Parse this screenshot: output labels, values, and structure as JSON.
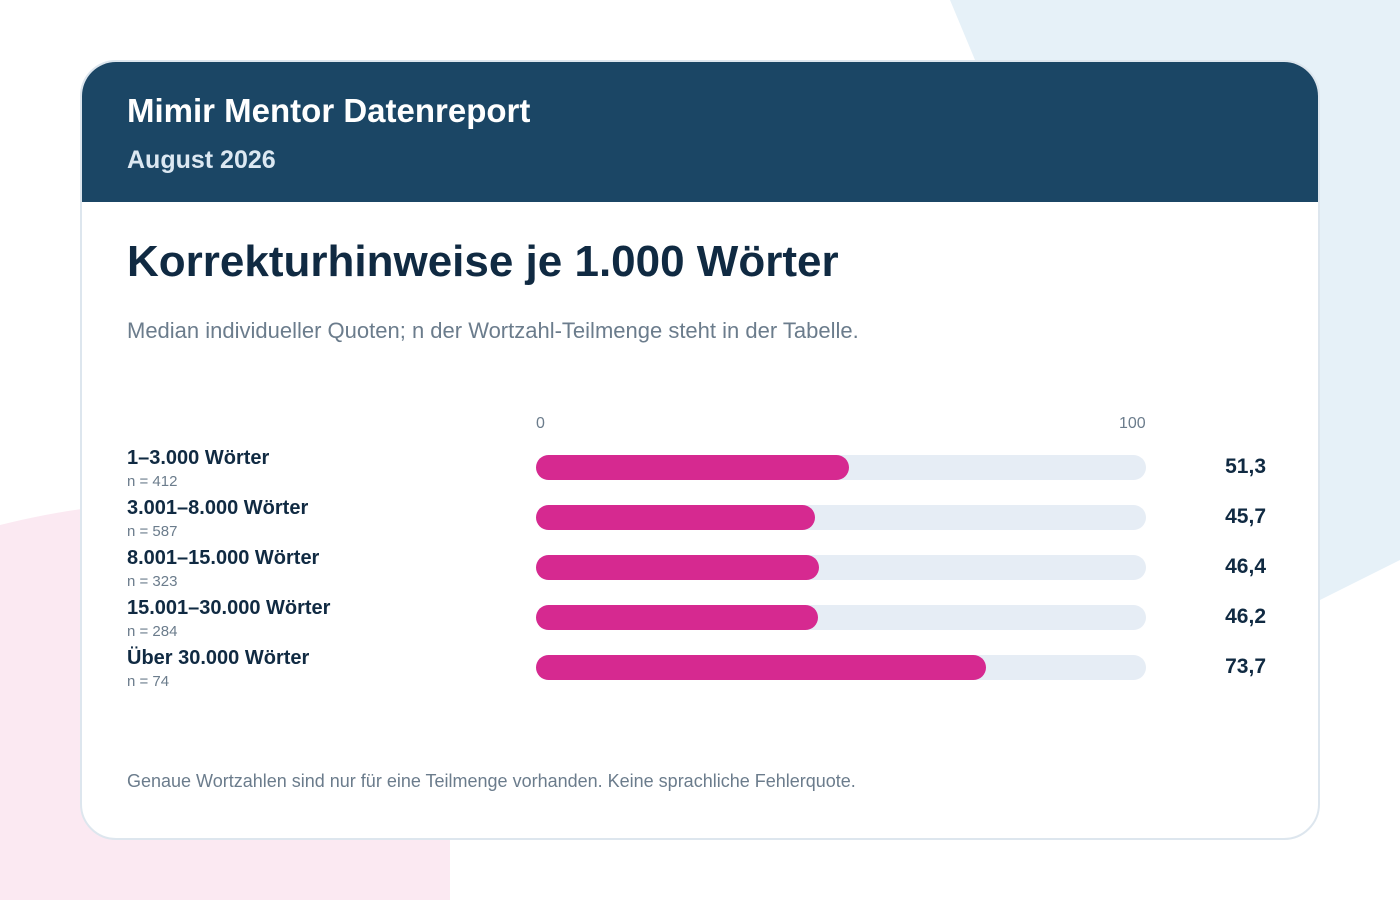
{
  "report": {
    "brand": "Mimir Mentor Datenreport",
    "period": "August 2026"
  },
  "chart_data": {
    "type": "bar",
    "orientation": "horizontal",
    "title": "Korrekturhinweise je 1.000 Wörter",
    "subtitle": "Median individueller Quoten; n der Wortzahl-Teilmenge steht in der Tabelle.",
    "axis": {
      "min": 0,
      "max": 100,
      "min_label": "0",
      "max_label": "100"
    },
    "categories": [
      "1–3.000 Wörter",
      "3.001–8.000 Wörter",
      "8.001–15.000 Wörter",
      "15.001–30.000 Wörter",
      "Über 30.000 Wörter"
    ],
    "n_labels": [
      "n = 412",
      "n = 587",
      "n = 323",
      "n = 284",
      "n = 74"
    ],
    "values": [
      51.3,
      45.7,
      46.4,
      46.2,
      73.7
    ],
    "value_labels": [
      "51,3",
      "45,7",
      "46,4",
      "46,2",
      "73,7"
    ],
    "footnote": "Genaue Wortzahlen sind nur für eine Teilmenge vorhanden. Keine sprachliche Fehlerquote.",
    "colors": {
      "bar": "#d62990",
      "track": "#e6edf5",
      "header": "#1b4665"
    }
  }
}
